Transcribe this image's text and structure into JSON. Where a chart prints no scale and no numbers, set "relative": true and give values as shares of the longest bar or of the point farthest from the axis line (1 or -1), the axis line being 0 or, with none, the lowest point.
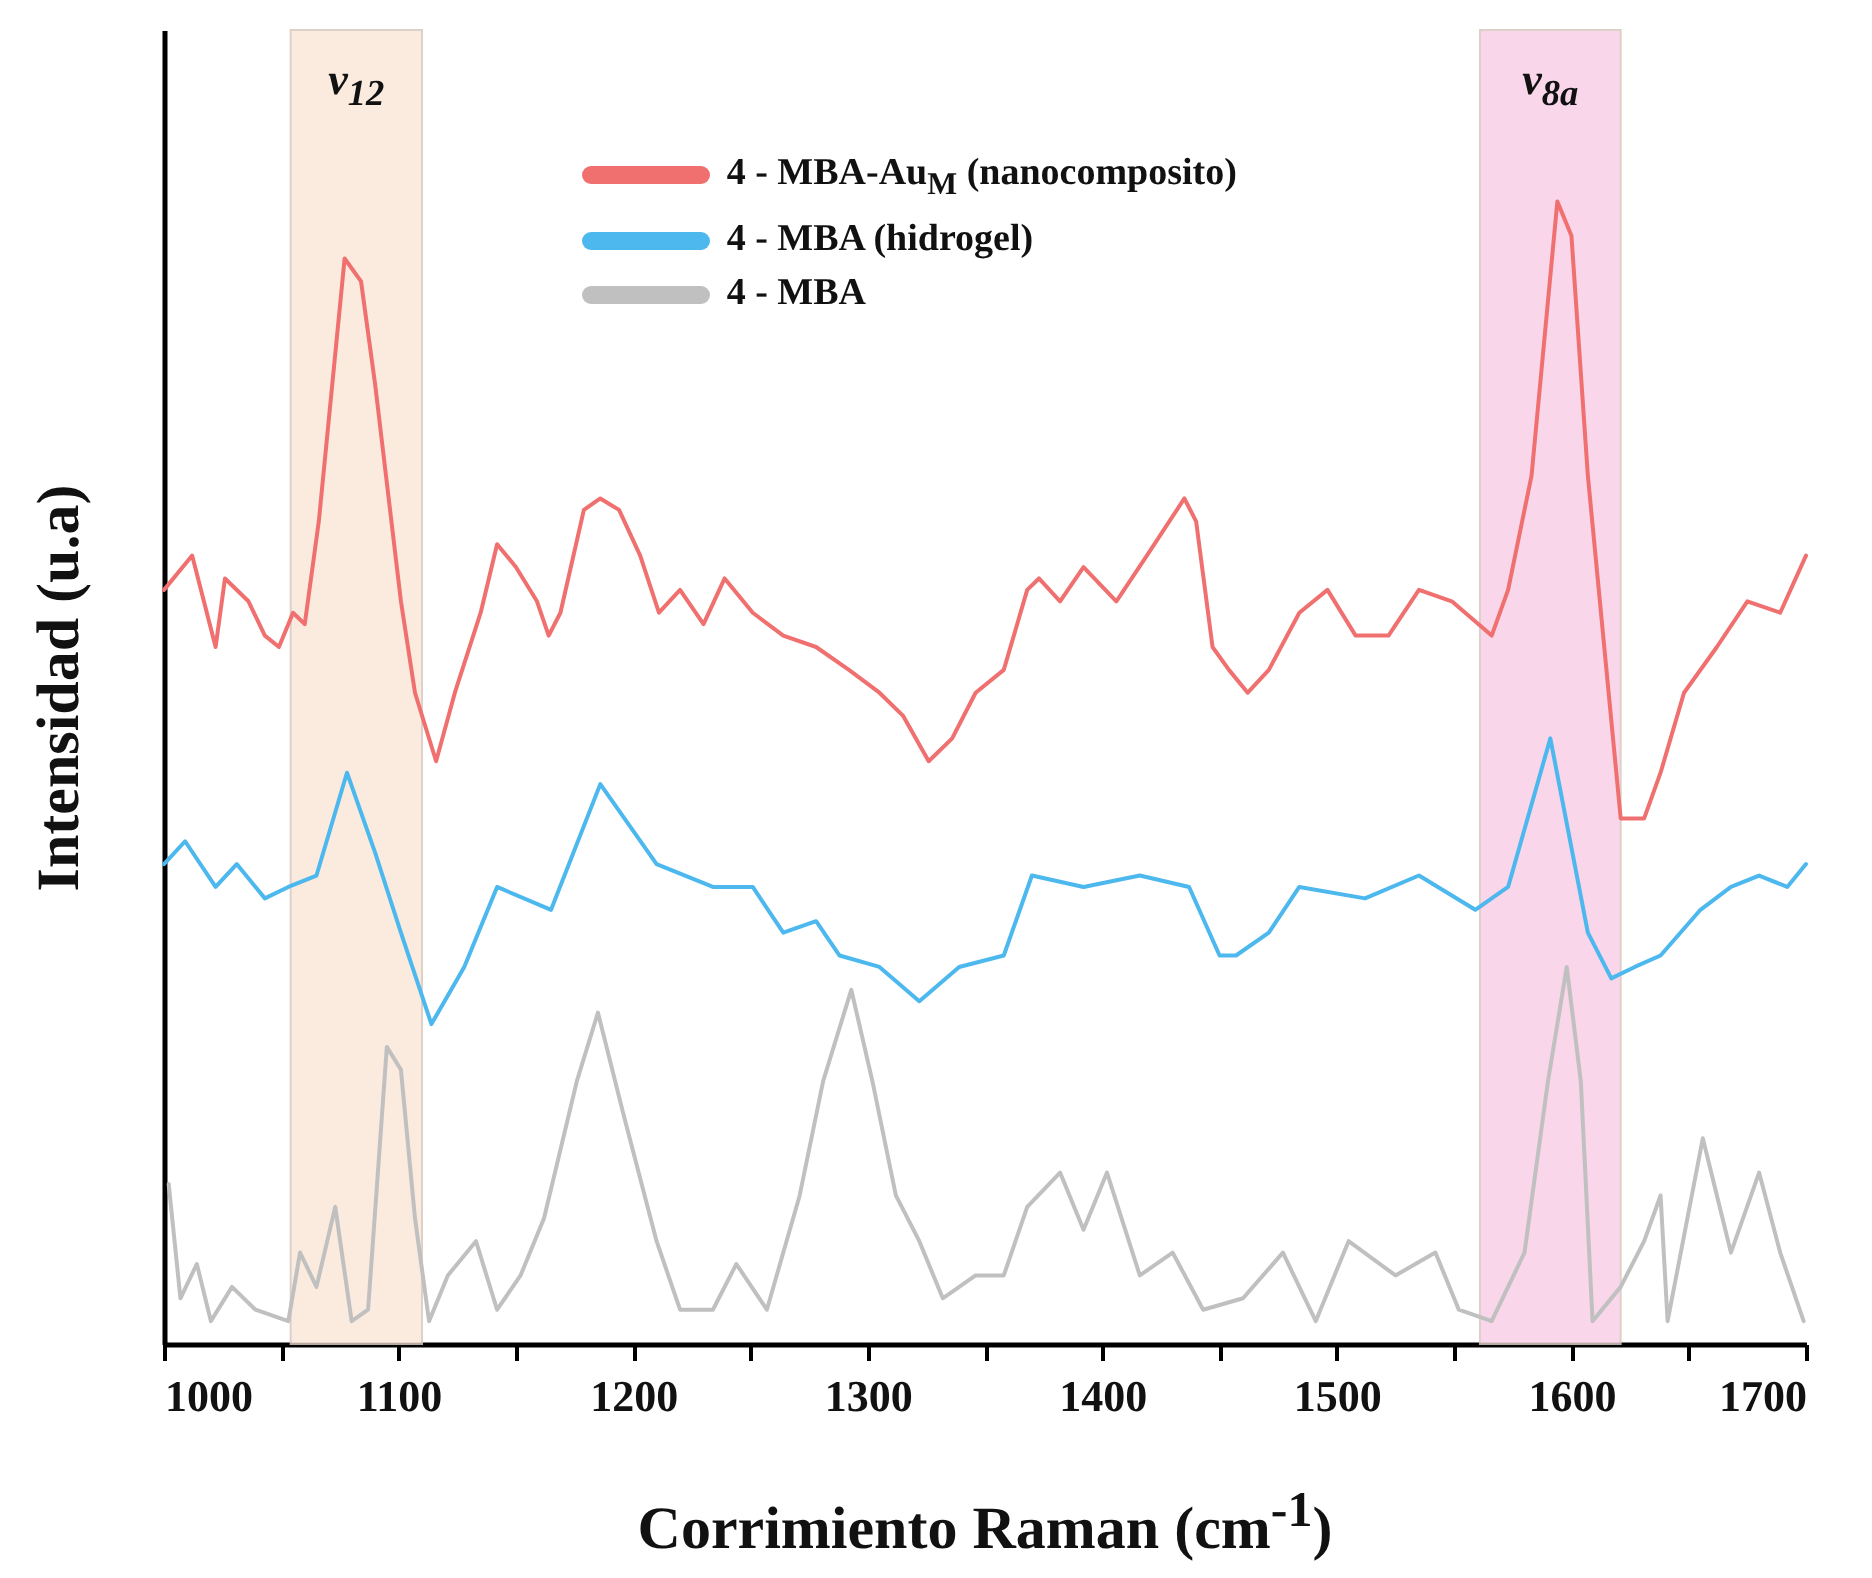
{
  "chart_data": {
    "type": "line",
    "relative": true,
    "xlabel": "Corrimiento Raman (cm$^{-1}$)",
    "ylabel": "Intensidad (u.a)",
    "xlim": [
      1000,
      1700
    ],
    "xticks": [
      1000,
      {
        "value": 1050,
        "label": null
      },
      1100,
      {
        "value": 1150,
        "label": null
      },
      1200,
      {
        "value": 1250,
        "label": null
      },
      1300,
      {
        "value": 1350,
        "label": null
      },
      1400,
      {
        "value": 1450,
        "label": null
      },
      1500,
      {
        "value": 1550,
        "label": null
      },
      1600,
      {
        "value": 1650,
        "label": null
      },
      1700
    ],
    "grid": false,
    "legend": "top",
    "line_style": "solid",
    "marker": "none",
    "bands": [
      {
        "axis": "x",
        "from": 1054,
        "to": 1110,
        "label": "v$_{12}$",
        "color": "#fbe8da"
      },
      {
        "axis": "x",
        "from": 1561,
        "to": 1621,
        "label": "v$_{8a}$",
        "color": "#f9cfe6"
      }
    ],
    "series": [
      {
        "name": "4 - MBA-Au$_{M}$ (nanocomposito)",
        "color": "#f07070",
        "x": [
          1000,
          1012,
          1022,
          1026,
          1036,
          1043,
          1049,
          1055,
          1060,
          1066,
          1077,
          1084,
          1090,
          1101,
          1107,
          1116,
          1124,
          1135,
          1142,
          1150,
          1159,
          1164,
          1169,
          1179,
          1186,
          1194,
          1203,
          1211,
          1220,
          1230,
          1239,
          1251,
          1264,
          1278,
          1292,
          1305,
          1315,
          1326,
          1336,
          1346,
          1358,
          1368,
          1373,
          1382,
          1392,
          1406,
          1419,
          1435,
          1440,
          1447,
          1454,
          1462,
          1471,
          1484,
          1496,
          1508,
          1522,
          1535,
          1549,
          1566,
          1573,
          1583,
          1594,
          1600,
          1607,
          1621,
          1631,
          1638,
          1648,
          1662,
          1675,
          1689,
          1700
        ],
        "values": [
          0.66,
          0.69,
          0.61,
          0.67,
          0.65,
          0.62,
          0.61,
          0.64,
          0.63,
          0.72,
          0.95,
          0.93,
          0.84,
          0.65,
          0.57,
          0.51,
          0.57,
          0.64,
          0.7,
          0.68,
          0.65,
          0.62,
          0.64,
          0.73,
          0.74,
          0.73,
          0.69,
          0.64,
          0.66,
          0.63,
          0.67,
          0.64,
          0.62,
          0.61,
          0.59,
          0.57,
          0.55,
          0.51,
          0.53,
          0.57,
          0.59,
          0.66,
          0.67,
          0.65,
          0.68,
          0.65,
          0.69,
          0.74,
          0.72,
          0.61,
          0.59,
          0.57,
          0.59,
          0.64,
          0.66,
          0.62,
          0.62,
          0.66,
          0.65,
          0.62,
          0.66,
          0.76,
          1.0,
          0.97,
          0.76,
          0.46,
          0.46,
          0.5,
          0.57,
          0.61,
          0.65,
          0.64,
          0.69
        ]
      },
      {
        "name": "4 - MBA (hidrogel)",
        "color": "#4db8ee",
        "x": [
          1000,
          1009,
          1022,
          1031,
          1043,
          1053,
          1065,
          1078,
          1090,
          1101,
          1114,
          1128,
          1142,
          1165,
          1186,
          1210,
          1234,
          1251,
          1264,
          1278,
          1288,
          1305,
          1322,
          1339,
          1358,
          1370,
          1392,
          1416,
          1437,
          1450,
          1457,
          1471,
          1484,
          1512,
          1535,
          1559,
          1573,
          1591,
          1607,
          1617,
          1627,
          1638,
          1655,
          1668,
          1680,
          1692,
          1700
        ],
        "values": [
          0.42,
          0.44,
          0.4,
          0.42,
          0.39,
          0.4,
          0.41,
          0.5,
          0.43,
          0.36,
          0.28,
          0.33,
          0.4,
          0.38,
          0.49,
          0.42,
          0.4,
          0.4,
          0.36,
          0.37,
          0.34,
          0.33,
          0.3,
          0.33,
          0.34,
          0.41,
          0.4,
          0.41,
          0.4,
          0.34,
          0.34,
          0.36,
          0.4,
          0.39,
          0.41,
          0.38,
          0.4,
          0.53,
          0.36,
          0.32,
          0.33,
          0.34,
          0.38,
          0.4,
          0.41,
          0.4,
          0.42
        ]
      },
      {
        "name": "4 - MBA",
        "color": "#c0c0c0",
        "x": [
          1002,
          1007,
          1014,
          1020,
          1029,
          1039,
          1053,
          1058,
          1065,
          1073,
          1080,
          1087,
          1095,
          1101,
          1107,
          1113,
          1121,
          1133,
          1142,
          1152,
          1162,
          1176,
          1185,
          1196,
          1210,
          1220,
          1234,
          1244,
          1257,
          1271,
          1281,
          1293,
          1302,
          1312,
          1322,
          1332,
          1346,
          1358,
          1368,
          1382,
          1392,
          1402,
          1416,
          1430,
          1443,
          1460,
          1477,
          1491,
          1505,
          1525,
          1542,
          1552,
          1566,
          1580,
          1590,
          1598,
          1604,
          1609,
          1621,
          1631,
          1638,
          1641,
          1656,
          1668,
          1680,
          1689,
          1699
        ],
        "values": [
          0.14,
          0.04,
          0.07,
          0.02,
          0.05,
          0.03,
          0.02,
          0.08,
          0.05,
          0.12,
          0.02,
          0.03,
          0.26,
          0.24,
          0.11,
          0.02,
          0.06,
          0.09,
          0.03,
          0.06,
          0.11,
          0.23,
          0.29,
          0.2,
          0.09,
          0.03,
          0.03,
          0.07,
          0.03,
          0.13,
          0.23,
          0.31,
          0.23,
          0.13,
          0.09,
          0.04,
          0.06,
          0.06,
          0.12,
          0.15,
          0.1,
          0.15,
          0.06,
          0.08,
          0.03,
          0.04,
          0.08,
          0.02,
          0.09,
          0.06,
          0.08,
          0.03,
          0.02,
          0.08,
          0.23,
          0.33,
          0.23,
          0.02,
          0.05,
          0.09,
          0.13,
          0.02,
          0.18,
          0.08,
          0.15,
          0.08,
          0.02
        ]
      }
    ]
  }
}
